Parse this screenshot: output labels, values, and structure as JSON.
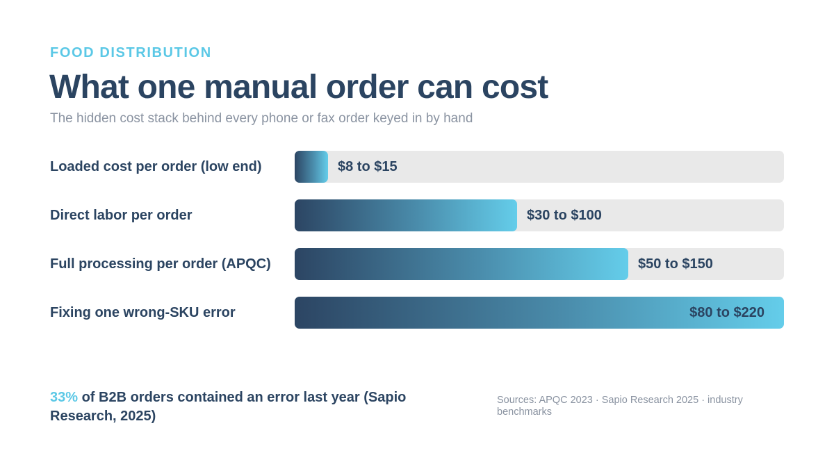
{
  "header": {
    "eyebrow": "FOOD DISTRIBUTION",
    "title": "What one manual order can cost",
    "subtitle": "The hidden cost stack behind every phone or fax order keyed in by hand"
  },
  "chart_data": {
    "type": "bar",
    "orientation": "horizontal",
    "unit": "USD",
    "xlim": [
      0,
      220
    ],
    "grid": false,
    "legend": "none",
    "colors": {
      "gradient_start": "#2c4563",
      "gradient_mid": "#4a8cab",
      "gradient_end": "#64cdea",
      "track": "#e9e9e9",
      "text": "#2b4461",
      "accent": "#5bc8e6"
    },
    "categories": [
      "Loaded cost per order (low end)",
      "Direct labor per order",
      "Full processing per order (APQC)",
      "Fixing one wrong-SKU error"
    ],
    "ranges": [
      [
        8,
        15
      ],
      [
        30,
        100
      ],
      [
        50,
        150
      ],
      [
        80,
        220
      ]
    ],
    "values": [
      15,
      100,
      150,
      220
    ],
    "value_labels": [
      "$8 to $15",
      "$30 to $100",
      "$50 to $150",
      "$80 to $220"
    ]
  },
  "footer": {
    "stat_highlight": "33%",
    "stat_text": " of B2B orders contained an error last year (Sapio Research, 2025)",
    "sources": "Sources: APQC 2023 · Sapio Research 2025 · industry benchmarks"
  }
}
